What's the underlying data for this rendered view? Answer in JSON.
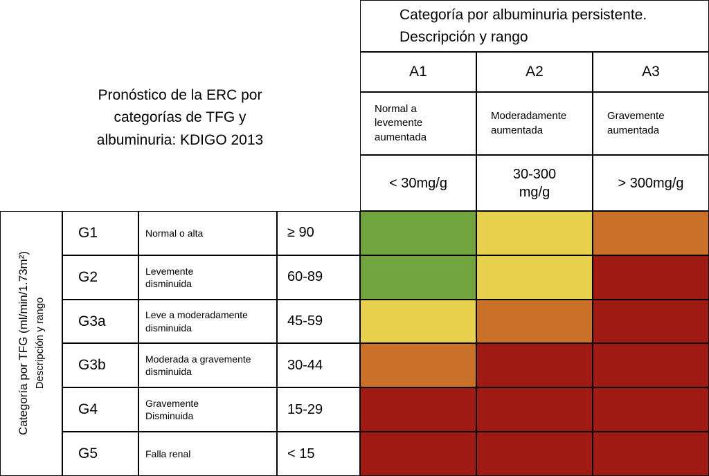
{
  "chart_data": {
    "type": "heatmap",
    "title": "Pronóstico de la ERC por\ncategorías de TFG y\nalbuminuria: KDIGO 2013",
    "x_axis": {
      "title": "Categoría por albuminuria persistente.\nDescripción y rango",
      "categories": [
        {
          "code": "A1",
          "description": "Normal a\nlevemente\naumentada",
          "range": "< 30mg/g"
        },
        {
          "code": "A2",
          "description": "Moderadamente\naumentada",
          "range": "30-300\nmg/g"
        },
        {
          "code": "A3",
          "description": "Gravemente\naumentada",
          "range": "> 300mg/g"
        }
      ]
    },
    "y_axis": {
      "title_line1": "Categoría por TFG (ml/min/1.73m²)",
      "title_line2": "Descripción y rango",
      "categories": [
        {
          "code": "G1",
          "description": "Normal o alta",
          "range": "≥ 90"
        },
        {
          "code": "G2",
          "description": "Levemente\ndisminuida",
          "range": "60-89"
        },
        {
          "code": "G3a",
          "description": "Leve a moderadamente\ndisminuida",
          "range": "45-59"
        },
        {
          "code": "G3b",
          "description": "Moderada a gravemente\ndisminuida",
          "range": "30-44"
        },
        {
          "code": "G4",
          "description": "Gravemente\nDisminuida",
          "range": "15-29"
        },
        {
          "code": "G5",
          "description": "Falla renal",
          "range": "< 15"
        }
      ]
    },
    "cells": [
      [
        "green",
        "yellow",
        "orange"
      ],
      [
        "green",
        "yellow",
        "red"
      ],
      [
        "yellow",
        "orange",
        "red"
      ],
      [
        "orange",
        "red",
        "red"
      ],
      [
        "red",
        "red",
        "red"
      ],
      [
        "red",
        "red",
        "red"
      ]
    ],
    "colors": {
      "green": "#71a33e",
      "yellow": "#e7d14c",
      "orange": "#c97129",
      "red": "#9e1a13"
    }
  }
}
